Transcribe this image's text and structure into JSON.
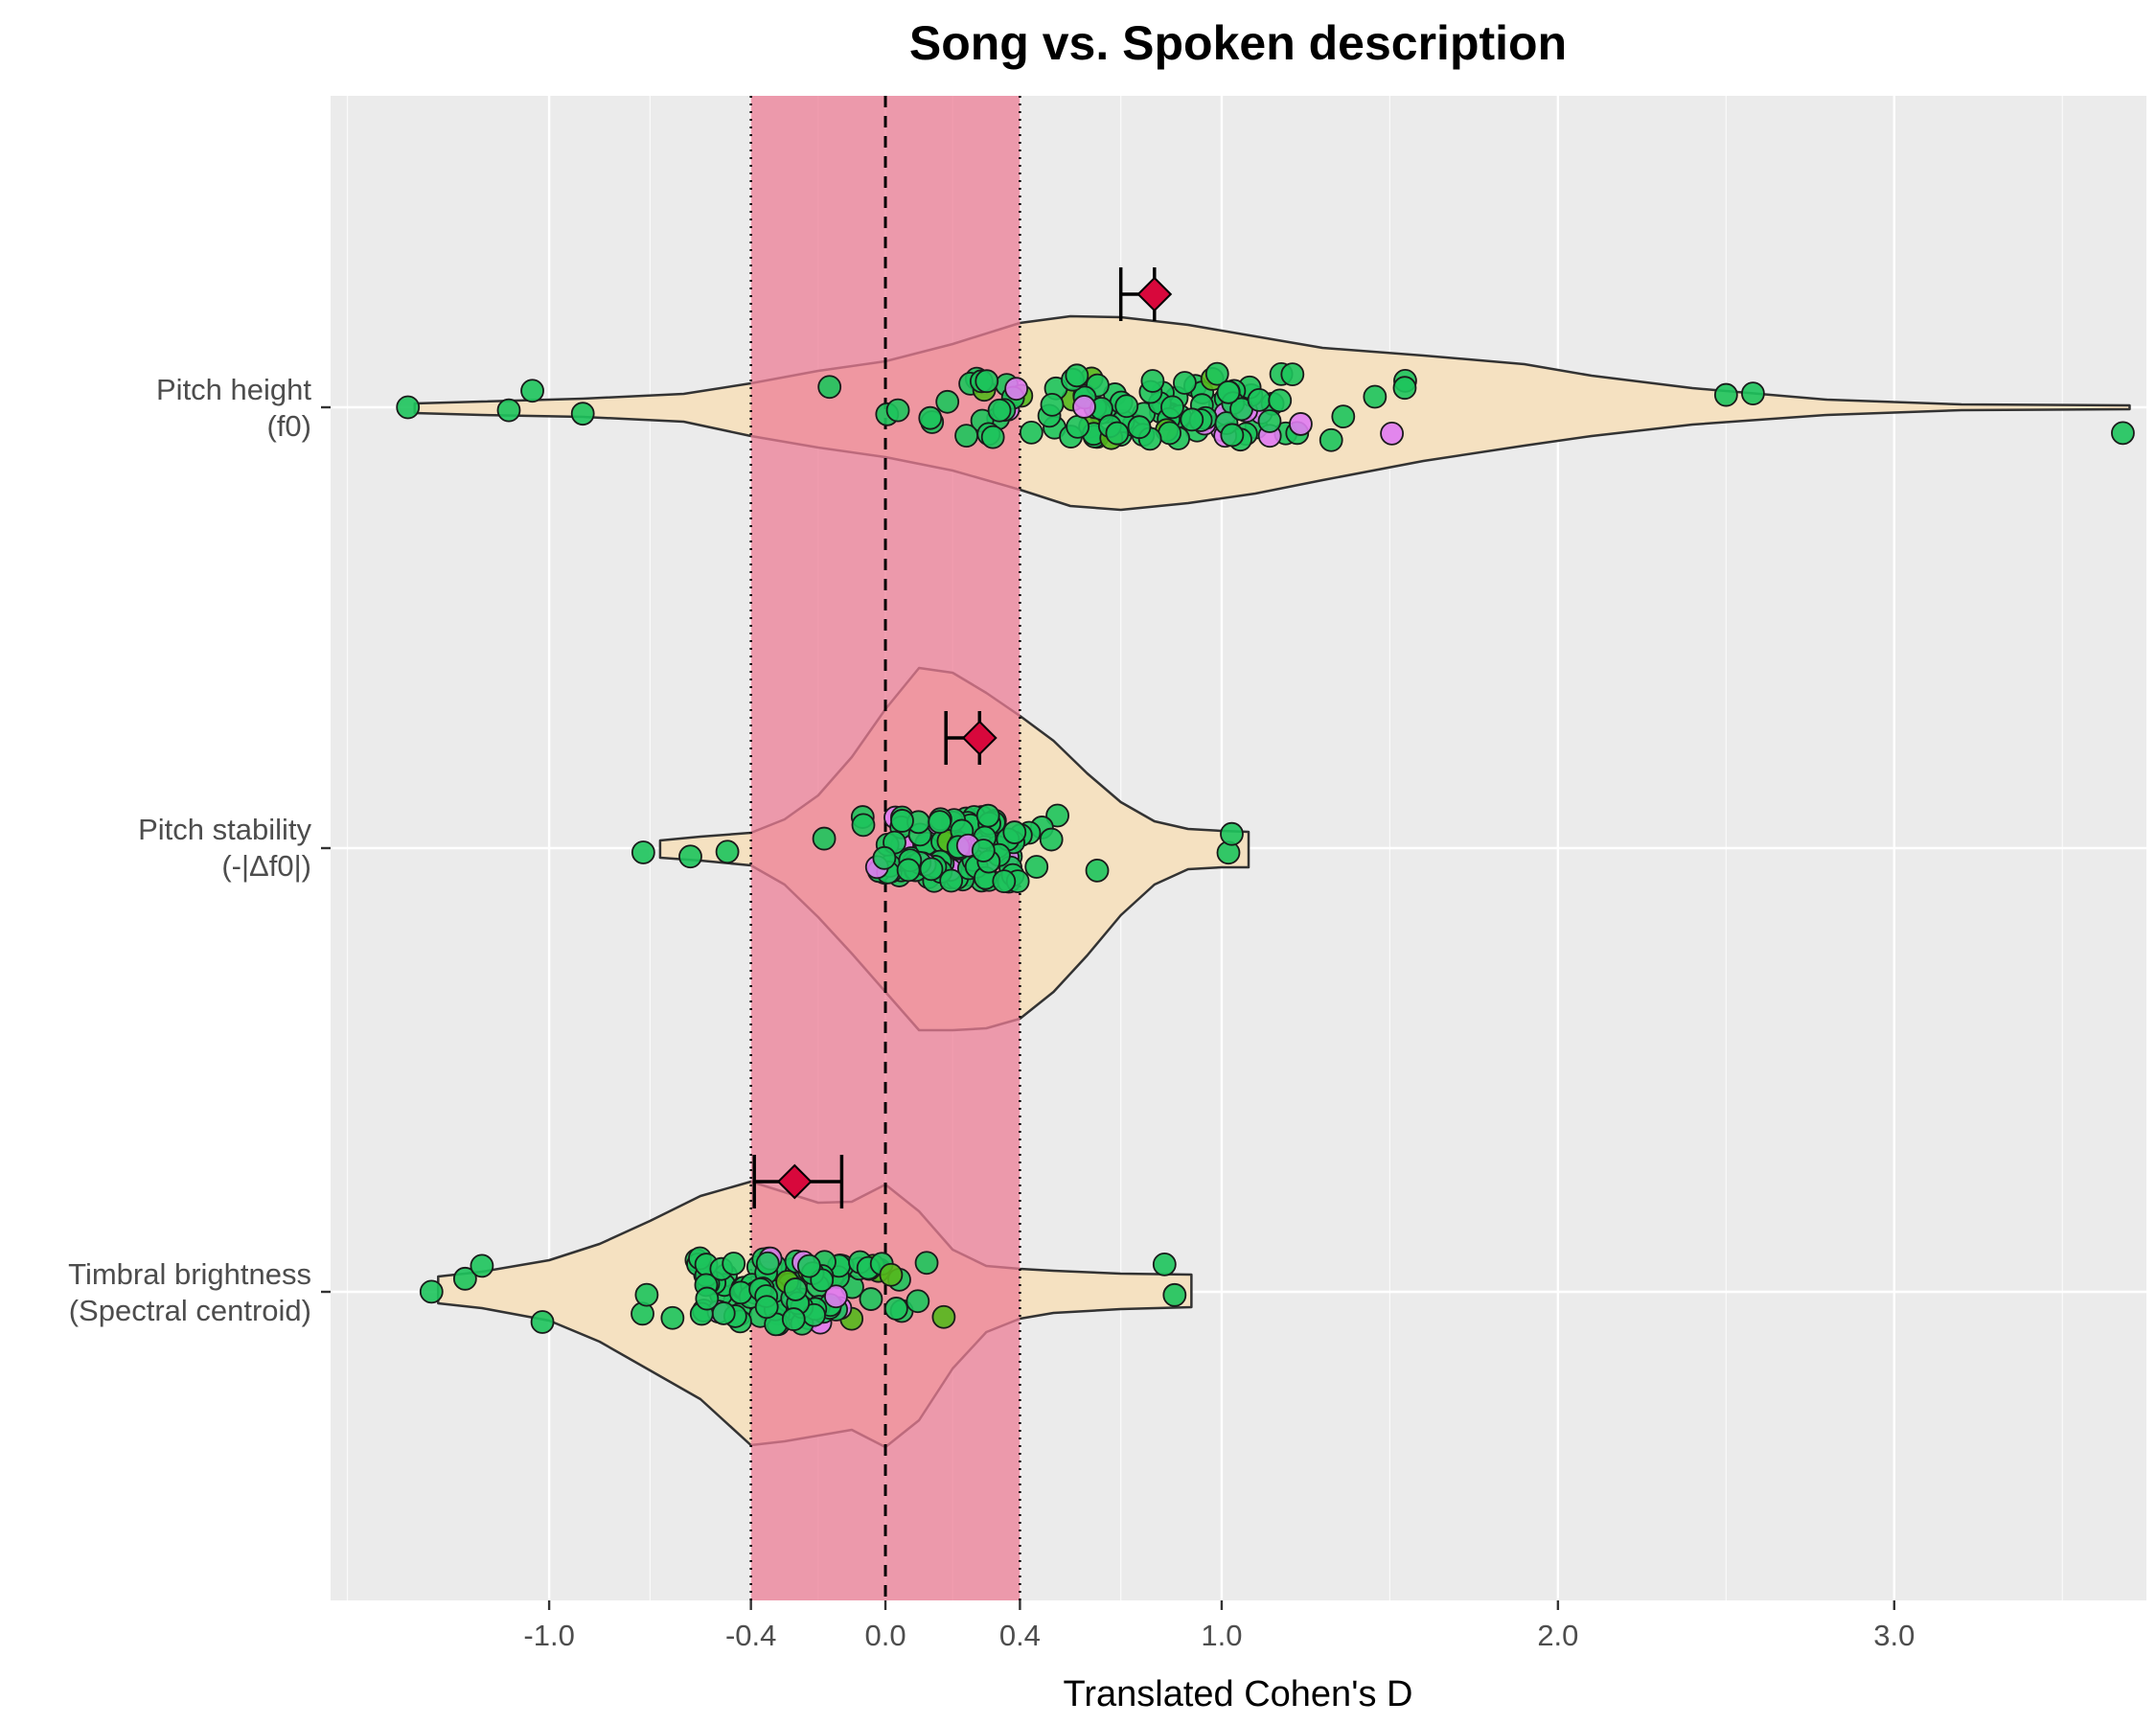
{
  "chart_data": {
    "type": "violin",
    "title": "Song vs. Spoken description",
    "xlabel": "Translated Cohen's D",
    "ylabel": "",
    "xlim": [
      -1.65,
      3.75
    ],
    "xticks": [
      -1.0,
      -0.4,
      0.0,
      0.4,
      1.0,
      2.0,
      3.0
    ],
    "xtick_labels": [
      "-1.0",
      "-0.4",
      "0.0",
      "0.4",
      "1.0",
      "2.0",
      "3.0"
    ],
    "equivalence_region": [
      -0.4,
      0.4
    ],
    "reference_line": 0.0,
    "colors": {
      "panel": "#ebebeb",
      "grid": "#ffffff",
      "violin_fill": "#f5e1c1",
      "equivalence_band": "#ec7d96",
      "point_green": "#1dc45c",
      "point_lime": "#54b81c",
      "point_violet": "#e07cf2",
      "estimate_marker": "#d8083c"
    },
    "categories": [
      {
        "label_line1": "Pitch height",
        "label_line2": "(f0)",
        "estimate": 0.8,
        "ci_lower": 0.7,
        "ci_upper": 0.8,
        "range": [
          -1.4,
          3.7
        ],
        "median_point": 0.7
      },
      {
        "label_line1": "Pitch stability",
        "label_line2": "(-|Δf0|)",
        "estimate": 0.28,
        "ci_lower": 0.18,
        "ci_upper": 0.28,
        "range": [
          -0.67,
          1.08
        ],
        "median_point": 0.15
      },
      {
        "label_line1": "Timbral brightness",
        "label_line2": "(Spectral centroid)",
        "estimate": -0.27,
        "ci_lower": -0.39,
        "ci_upper": -0.13,
        "range": [
          -1.33,
          0.91
        ],
        "median_point": -0.2
      }
    ]
  }
}
